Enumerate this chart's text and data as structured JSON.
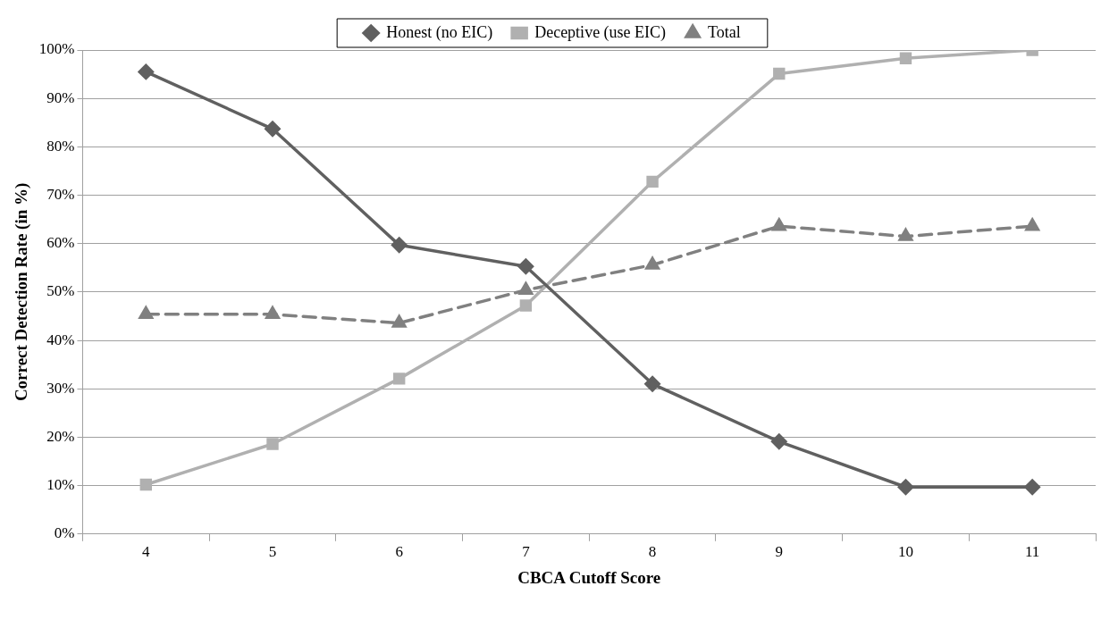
{
  "chart_data": {
    "type": "line",
    "xlabel": "CBCA Cutoff Score",
    "ylabel": "Correct Detection Rate (in %)",
    "categories": [
      "4",
      "5",
      "6",
      "7",
      "8",
      "9",
      "10",
      "11"
    ],
    "series": [
      {
        "name": "Honest (no EIC)",
        "color": "#606060",
        "marker": "diamond",
        "line_style": "solid",
        "values": [
          95.5,
          83.7,
          59.7,
          55.3,
          31,
          19.1,
          9.7,
          9.7
        ]
      },
      {
        "name": "Deceptive (use EIC)",
        "color": "#b0b0b0",
        "marker": "square",
        "line_style": "solid",
        "values": [
          10.2,
          18.6,
          32.1,
          47.2,
          72.8,
          95.1,
          98.3,
          100
        ]
      },
      {
        "name": "Total",
        "color": "#808080",
        "marker": "triangle",
        "line_style": "dashed",
        "values": [
          45.4,
          45.4,
          43.6,
          50.4,
          55.6,
          63.6,
          61.5,
          63.6
        ]
      }
    ],
    "ylim": [
      0,
      100
    ],
    "yticks": [
      {
        "value": 0,
        "label": "0%"
      },
      {
        "value": 10,
        "label": "10%"
      },
      {
        "value": 20,
        "label": "20%"
      },
      {
        "value": 30,
        "label": "30%"
      },
      {
        "value": 40,
        "label": "40%"
      },
      {
        "value": 50,
        "label": "50%"
      },
      {
        "value": 60,
        "label": "60%"
      },
      {
        "value": 70,
        "label": "70%"
      },
      {
        "value": 80,
        "label": "80%"
      },
      {
        "value": 90,
        "label": "90%"
      },
      {
        "value": 100,
        "label": "100%"
      }
    ],
    "grid": "y",
    "legend": "top"
  }
}
